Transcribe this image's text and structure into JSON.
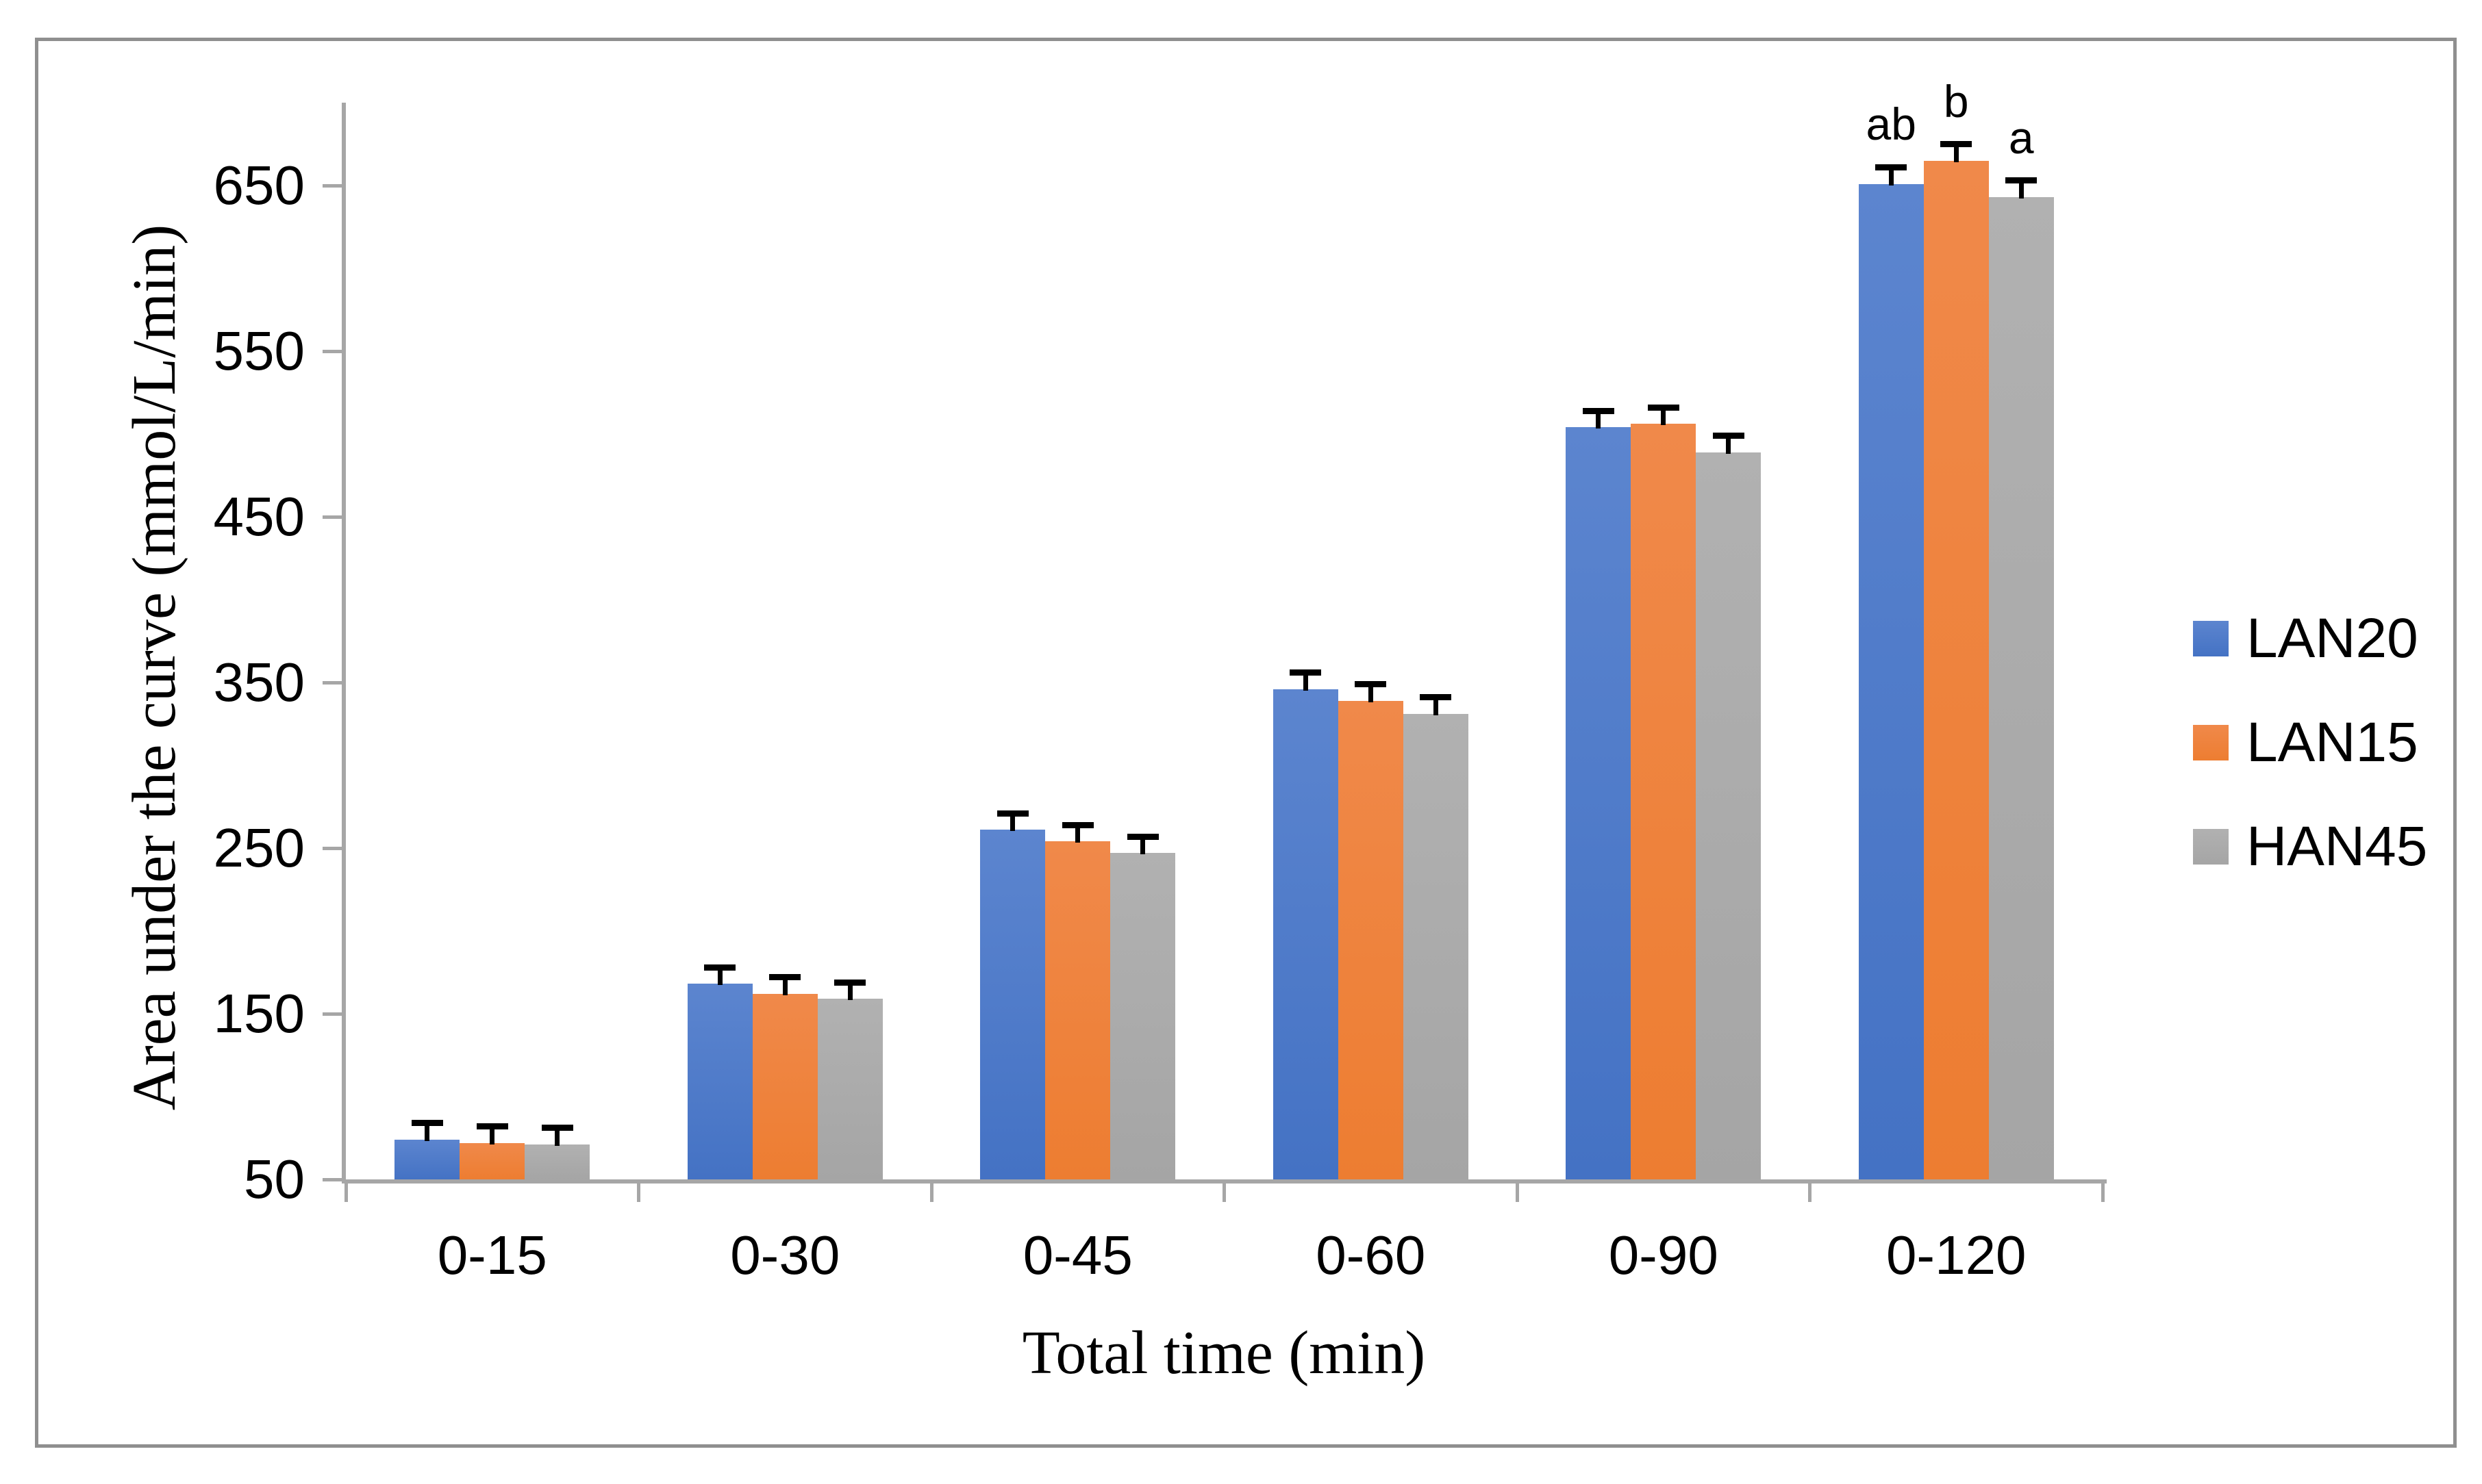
{
  "figure": {
    "background": "#FFFFFF",
    "border_color": "#8F8F8F",
    "axis_color": "#A6A6A6",
    "text_color": "#000000"
  },
  "chart_data": {
    "type": "bar",
    "title": "",
    "xlabel": "Total time (min)",
    "ylabel": "Area under the curve (mmol/L/min)",
    "categories": [
      "0-15",
      "0-30",
      "0-45",
      "0-60",
      "0-90",
      "0-120"
    ],
    "series": [
      {
        "name": "LAN20",
        "color": "#4472C4",
        "color_light": "#5C85CF",
        "values": [
          74,
          168,
          261,
          346,
          504,
          651
        ],
        "errors": [
          10,
          10,
          10,
          10,
          10,
          10
        ]
      },
      {
        "name": "LAN15",
        "color": "#ED7D31",
        "color_light": "#F0894A",
        "values": [
          72,
          162,
          254,
          339,
          506,
          665
        ],
        "errors": [
          10,
          10,
          10,
          10,
          10,
          10
        ]
      },
      {
        "name": "HAN45",
        "color": "#A5A5A5",
        "color_light": "#B1B1B1",
        "values": [
          71,
          159,
          247,
          331,
          489,
          643
        ],
        "errors": [
          10,
          10,
          10,
          10,
          10,
          10
        ]
      }
    ],
    "y_ticks": [
      50,
      150,
      250,
      350,
      450,
      550,
      650
    ],
    "ylim": [
      50,
      700
    ],
    "grid": false,
    "legend_position": "right",
    "error_bars": "upper-only-with-caps",
    "annotations": [
      {
        "category": "0-120",
        "series": "LAN20",
        "label": "ab"
      },
      {
        "category": "0-120",
        "series": "LAN15",
        "label": "b"
      },
      {
        "category": "0-120",
        "series": "HAN45",
        "label": "a"
      }
    ]
  }
}
